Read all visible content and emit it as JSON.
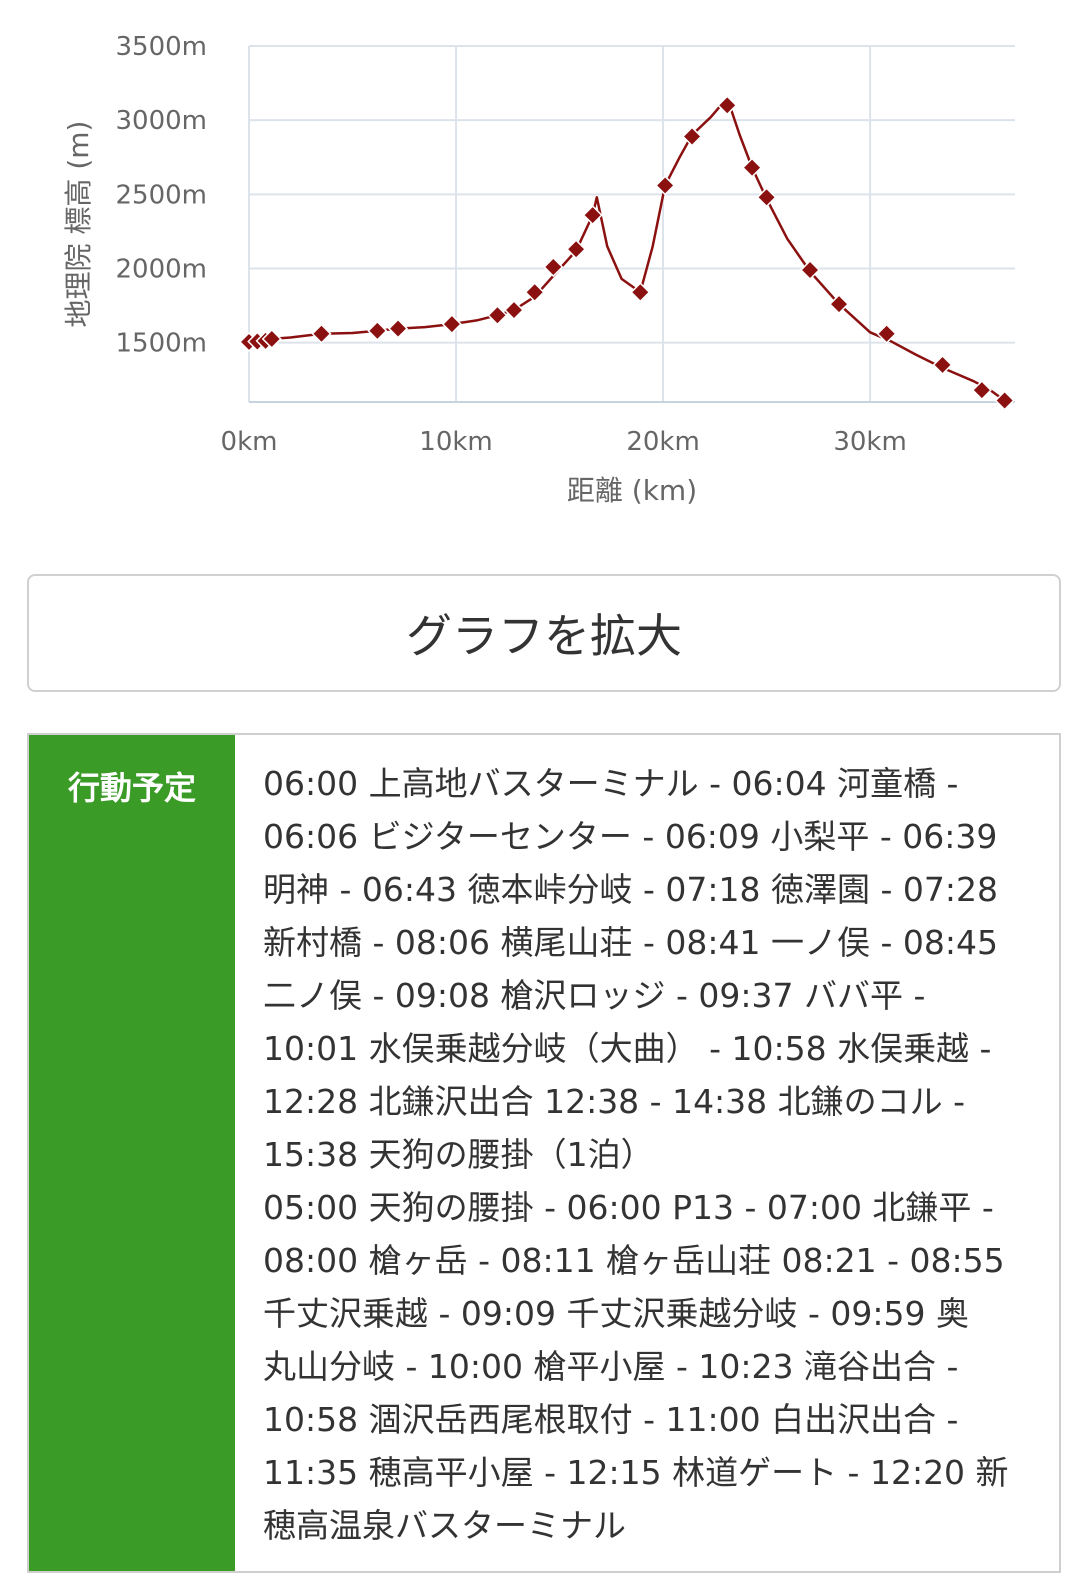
{
  "chart_data": {
    "type": "line",
    "title": "",
    "xlabel": "距離 (km)",
    "ylabel": "地理院 標高 (m)",
    "xlim": [
      0,
      37
    ],
    "ylim": [
      1100,
      3500
    ],
    "x_ticks": [
      0,
      10,
      20,
      30
    ],
    "x_tick_labels": [
      "0km",
      "10km",
      "20km",
      "30km"
    ],
    "y_ticks": [
      1500,
      2000,
      2500,
      3000,
      3500
    ],
    "y_tick_labels": [
      "1500m",
      "2000m",
      "2500m",
      "3000m",
      "3500m"
    ],
    "grid": true,
    "line_color": "#8b1010",
    "marker_color": "#8b1010",
    "marker": "diamond",
    "profile": [
      {
        "x": 0,
        "y": 1505
      },
      {
        "x": 0.5,
        "y": 1515
      },
      {
        "x": 1,
        "y": 1525
      },
      {
        "x": 2,
        "y": 1535
      },
      {
        "x": 3.5,
        "y": 1560
      },
      {
        "x": 5,
        "y": 1565
      },
      {
        "x": 6.2,
        "y": 1580
      },
      {
        "x": 7.2,
        "y": 1595
      },
      {
        "x": 8.5,
        "y": 1605
      },
      {
        "x": 9.8,
        "y": 1625
      },
      {
        "x": 11,
        "y": 1650
      },
      {
        "x": 12,
        "y": 1685
      },
      {
        "x": 12.8,
        "y": 1720
      },
      {
        "x": 13.8,
        "y": 1810
      },
      {
        "x": 14.7,
        "y": 1950
      },
      {
        "x": 15.8,
        "y": 2120
      },
      {
        "x": 16.6,
        "y": 2360
      },
      {
        "x": 16.8,
        "y": 2480
      },
      {
        "x": 17.3,
        "y": 2150
      },
      {
        "x": 18,
        "y": 1930
      },
      {
        "x": 18.9,
        "y": 1840
      },
      {
        "x": 19.5,
        "y": 2150
      },
      {
        "x": 20.1,
        "y": 2560
      },
      {
        "x": 20.8,
        "y": 2750
      },
      {
        "x": 21.4,
        "y": 2900
      },
      {
        "x": 22.3,
        "y": 3020
      },
      {
        "x": 23.1,
        "y": 3150
      },
      {
        "x": 23.7,
        "y": 2900
      },
      {
        "x": 24.3,
        "y": 2680
      },
      {
        "x": 25,
        "y": 2470
      },
      {
        "x": 26,
        "y": 2200
      },
      {
        "x": 27.1,
        "y": 1980
      },
      {
        "x": 28.5,
        "y": 1760
      },
      {
        "x": 30,
        "y": 1570
      },
      {
        "x": 31,
        "y": 1510
      },
      {
        "x": 32.2,
        "y": 1420
      },
      {
        "x": 33.5,
        "y": 1330
      },
      {
        "x": 35,
        "y": 1240
      },
      {
        "x": 35.8,
        "y": 1180
      },
      {
        "x": 36.5,
        "y": 1110
      }
    ],
    "markers": [
      {
        "x": 0,
        "y": 1505
      },
      {
        "x": 0.4,
        "y": 1508
      },
      {
        "x": 0.8,
        "y": 1512
      },
      {
        "x": 1.1,
        "y": 1525
      },
      {
        "x": 3.5,
        "y": 1560
      },
      {
        "x": 6.2,
        "y": 1580
      },
      {
        "x": 7.2,
        "y": 1595
      },
      {
        "x": 9.8,
        "y": 1625
      },
      {
        "x": 12,
        "y": 1685
      },
      {
        "x": 12.8,
        "y": 1720
      },
      {
        "x": 13.8,
        "y": 1840
      },
      {
        "x": 14.7,
        "y": 2010
      },
      {
        "x": 15.8,
        "y": 2130
      },
      {
        "x": 16.6,
        "y": 2360
      },
      {
        "x": 18.9,
        "y": 1840
      },
      {
        "x": 20.1,
        "y": 2560
      },
      {
        "x": 21.4,
        "y": 2890
      },
      {
        "x": 23.1,
        "y": 3100
      },
      {
        "x": 24.3,
        "y": 2680
      },
      {
        "x": 25,
        "y": 2480
      },
      {
        "x": 27.1,
        "y": 1990
      },
      {
        "x": 28.5,
        "y": 1760
      },
      {
        "x": 30.8,
        "y": 1560
      },
      {
        "x": 33.5,
        "y": 1350
      },
      {
        "x": 35.4,
        "y": 1180
      },
      {
        "x": 36.5,
        "y": 1110
      }
    ]
  },
  "expand_button": {
    "label": "グラフを拡大"
  },
  "schedule": {
    "label": "行動予定",
    "lines": [
      "06:00 上高地バスターミナル - 06:04 河童橋 -",
      "06:06 ビジターセンター - 06:09 小梨平 - 06:39",
      "明神 - 06:43 徳本峠分岐 - 07:18 徳澤園 - 07:28",
      "新村橋 - 08:06 横尾山荘 - 08:41 一ノ俣 - 08:45",
      "二ノ俣 - 09:08 槍沢ロッジ - 09:37 ババ平 -",
      "10:01 水俣乗越分岐（大曲） - 10:58 水俣乗越 -",
      "12:28 北鎌沢出合 12:38 - 14:38 北鎌のコル -",
      "15:38 天狗の腰掛（1泊）",
      "05:00 天狗の腰掛 - 06:00 P13 - 07:00 北鎌平 -",
      "08:00 槍ヶ岳 - 08:11 槍ヶ岳山荘 08:21 - 08:55",
      "千丈沢乗越 - 09:09 千丈沢乗越分岐 - 09:59 奥",
      "丸山分岐 - 10:00 槍平小屋 - 10:23 滝谷出合 -",
      "10:58 涸沢岳西尾根取付 - 11:00 白出沢出合 -",
      "11:35 穂高平小屋 - 12:15 林道ゲート - 12:20 新",
      "穂高温泉バスターミナル"
    ]
  },
  "colors": {
    "accent_green": "#3a9b26",
    "profile_red": "#8b1010",
    "grid": "#dde3ea"
  }
}
